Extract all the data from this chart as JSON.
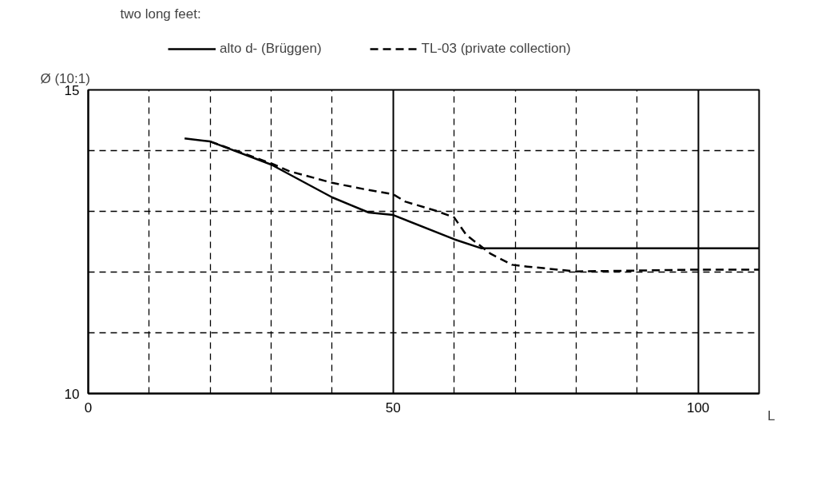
{
  "chart_data": {
    "type": "line",
    "title": "two long feet:",
    "xlabel": "L",
    "ylabel": "Ø (10:1)",
    "xlim": [
      0,
      110
    ],
    "ylim": [
      10,
      15
    ],
    "xticks": [
      0,
      {
        "value": 10,
        "label": null
      },
      {
        "value": 20,
        "label": null
      },
      {
        "value": 30,
        "label": null
      },
      {
        "value": 40,
        "label": null
      },
      50,
      {
        "value": 60,
        "label": null
      },
      {
        "value": 70,
        "label": null
      },
      {
        "value": 80,
        "label": null
      },
      {
        "value": 90,
        "label": null
      },
      100,
      {
        "value": 110,
        "label": null
      }
    ],
    "yticks": [
      10,
      {
        "value": 11,
        "label": null
      },
      {
        "value": 12,
        "label": null
      },
      {
        "value": 13,
        "label": null
      },
      {
        "value": 14,
        "label": null
      },
      15
    ],
    "grid": true,
    "legend": "top",
    "marker": "none",
    "series": [
      {
        "name": "alto d- (Brüggen)",
        "color": "#000000",
        "line_style": "solid",
        "x": [
          15.8,
          20,
          30,
          40,
          46,
          50,
          60,
          64.5,
          110
        ],
        "values": [
          14.2,
          14.15,
          13.77,
          13.23,
          12.98,
          12.94,
          12.54,
          12.39,
          12.39
        ]
      },
      {
        "name": "TL-03 (private collection)",
        "color": "#000000",
        "line_style": "dashed",
        "x": [
          20,
          30,
          33,
          40,
          45,
          50,
          52,
          57,
          60,
          62,
          66,
          69.5,
          72,
          80,
          100,
          110
        ],
        "values": [
          14.15,
          13.79,
          13.66,
          13.47,
          13.37,
          13.28,
          13.16,
          13.01,
          12.9,
          12.61,
          12.3,
          12.12,
          12.09,
          12.01,
          12.04,
          12.04
        ]
      }
    ]
  }
}
